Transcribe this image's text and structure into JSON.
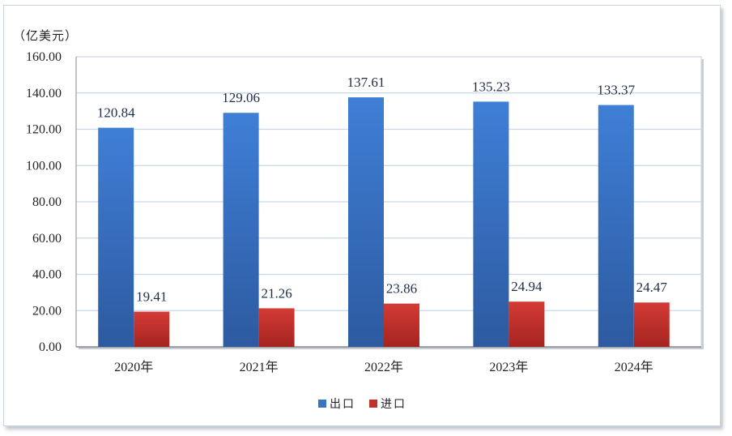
{
  "chart_data": {
    "type": "bar",
    "unit_label": "（亿美元）",
    "categories": [
      "2020年",
      "2021年",
      "2022年",
      "2023年",
      "2024年"
    ],
    "series": [
      {
        "name": "出口",
        "values": [
          120.84,
          129.06,
          137.61,
          135.23,
          133.37
        ],
        "color": "#3a72c4"
      },
      {
        "name": "进口",
        "values": [
          19.41,
          21.26,
          23.86,
          24.94,
          24.47
        ],
        "color": "#c4302c"
      }
    ],
    "ylim": [
      0,
      160
    ],
    "yticks": [
      "0.00",
      "20.00",
      "40.00",
      "60.00",
      "80.00",
      "100.00",
      "120.00",
      "140.00",
      "160.00"
    ],
    "grid": true,
    "legend_position": "bottom"
  }
}
